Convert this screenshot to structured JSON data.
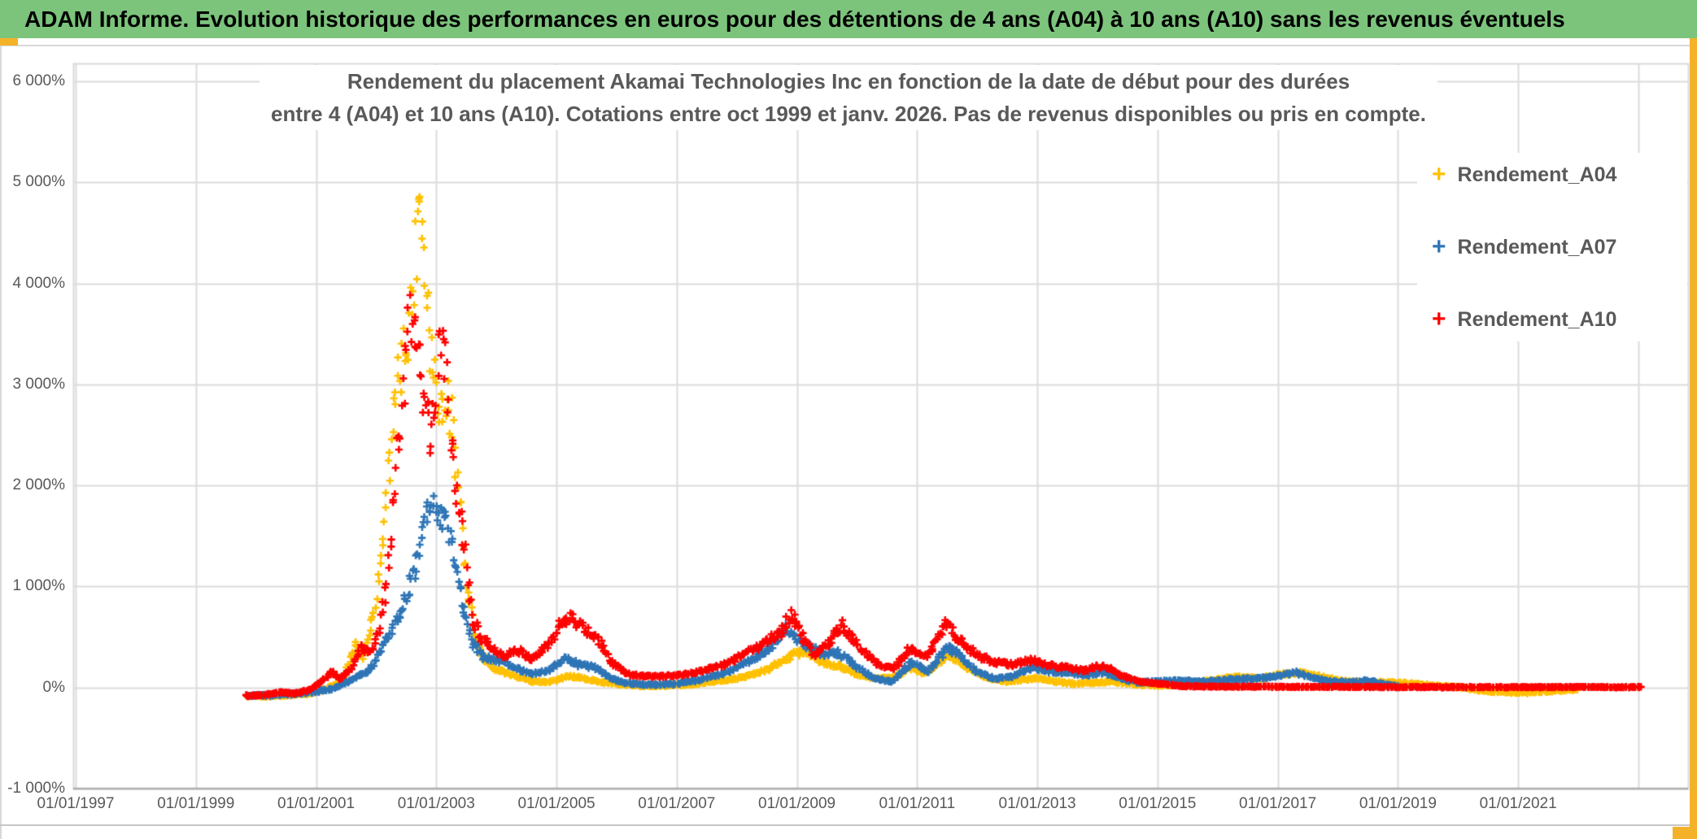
{
  "header": {
    "title": "ADAM Informe. Evolution historique des performances en euros pour des détentions de 4 ans (A04) à 10 ans (A10) sans les revenus éventuels",
    "bg_color": "#7cc47c",
    "text_color": "#000000"
  },
  "accents": {
    "gold": "#f3b229"
  },
  "chart_data": {
    "type": "scatter",
    "title_line1": "Rendement du placement Akamai Technologies Inc en fonction de la date de début pour des durées",
    "title_line2": "entre 4 (A04) et 10 ans (A10). Cotations entre oct 1999 et janv. 2026. Pas de revenus disponibles ou pris en compte.",
    "marker": "plus",
    "grid": true,
    "grid_color": "#dcdcdc",
    "border_color": "#d9d9d9",
    "axis_color": "#b0b0b0",
    "label_color": "#595959",
    "ylim": [
      -1000,
      6000
    ],
    "xlim_years": [
      1996.95,
      2023.85
    ],
    "y_tick_values": [
      6000,
      5000,
      4000,
      3000,
      2000,
      1000,
      0,
      -1000
    ],
    "y_tick_labels": [
      "6 000%",
      "5 000%",
      "4 000%",
      "3 000%",
      "2 000%",
      "1 000%",
      "0%",
      "-1 000%"
    ],
    "x_tick_years": [
      1997,
      1999,
      2001,
      2003,
      2005,
      2007,
      2009,
      2011,
      2013,
      2015,
      2017,
      2019,
      2021
    ],
    "x_grid_years": [
      1997,
      1999,
      2001,
      2003,
      2005,
      2007,
      2009,
      2011,
      2013,
      2015,
      2017,
      2019,
      2021,
      2023
    ],
    "x_tick_labels": [
      "01/01/1997",
      "01/01/1999",
      "01/01/2001",
      "01/01/2003",
      "01/01/2005",
      "01/01/2007",
      "01/01/2009",
      "01/01/2011",
      "01/01/2013",
      "01/01/2015",
      "01/01/2017",
      "01/01/2019",
      "01/01/2021"
    ],
    "points_per_year": 52,
    "legend_position": "inside-right-top",
    "series": [
      {
        "name": "Rendement_A04",
        "color": "#FFC000",
        "start_year": 1999.85,
        "end_year": 2022.0,
        "noise_frac": 0.1,
        "noise_floor_pct": 9,
        "keypoints": [
          [
            1999.85,
            -85
          ],
          [
            2000.2,
            -85
          ],
          [
            2000.6,
            -70
          ],
          [
            2000.9,
            -55
          ],
          [
            2001.1,
            -30
          ],
          [
            2001.35,
            40
          ],
          [
            2001.5,
            140
          ],
          [
            2001.65,
            420
          ],
          [
            2001.8,
            300
          ],
          [
            2001.95,
            700
          ],
          [
            2002.1,
            1400
          ],
          [
            2002.25,
            2500
          ],
          [
            2002.45,
            3300
          ],
          [
            2002.6,
            3900
          ],
          [
            2002.72,
            5100
          ],
          [
            2002.8,
            4300
          ],
          [
            2002.9,
            3500
          ],
          [
            2003.0,
            3100
          ],
          [
            2003.1,
            2700
          ],
          [
            2003.2,
            2900
          ],
          [
            2003.35,
            2200
          ],
          [
            2003.5,
            1000
          ],
          [
            2003.65,
            500
          ],
          [
            2003.8,
            260
          ],
          [
            2004.0,
            180
          ],
          [
            2004.3,
            120
          ],
          [
            2004.6,
            60
          ],
          [
            2004.9,
            60
          ],
          [
            2005.2,
            110
          ],
          [
            2005.35,
            105
          ],
          [
            2005.6,
            70
          ],
          [
            2005.9,
            45
          ],
          [
            2006.3,
            20
          ],
          [
            2006.8,
            15
          ],
          [
            2007.2,
            30
          ],
          [
            2007.6,
            60
          ],
          [
            2008.0,
            90
          ],
          [
            2008.4,
            150
          ],
          [
            2008.75,
            260
          ],
          [
            2008.95,
            330
          ],
          [
            2009.15,
            370
          ],
          [
            2009.4,
            250
          ],
          [
            2009.7,
            215
          ],
          [
            2010.0,
            130
          ],
          [
            2010.3,
            90
          ],
          [
            2010.6,
            95
          ],
          [
            2010.9,
            200
          ],
          [
            2011.1,
            140
          ],
          [
            2011.45,
            290
          ],
          [
            2011.6,
            300
          ],
          [
            2011.9,
            180
          ],
          [
            2012.2,
            90
          ],
          [
            2012.5,
            60
          ],
          [
            2012.8,
            80
          ],
          [
            2013.0,
            95
          ],
          [
            2013.3,
            60
          ],
          [
            2013.6,
            40
          ],
          [
            2013.9,
            45
          ],
          [
            2014.2,
            60
          ],
          [
            2014.5,
            40
          ],
          [
            2014.8,
            25
          ],
          [
            2015.1,
            20
          ],
          [
            2015.5,
            40
          ],
          [
            2015.9,
            70
          ],
          [
            2016.3,
            110
          ],
          [
            2016.7,
            90
          ],
          [
            2017.0,
            130
          ],
          [
            2017.4,
            150
          ],
          [
            2017.7,
            110
          ],
          [
            2018.0,
            70
          ],
          [
            2018.4,
            50
          ],
          [
            2018.8,
            55
          ],
          [
            2019.2,
            40
          ],
          [
            2019.6,
            20
          ],
          [
            2020.0,
            5
          ],
          [
            2020.4,
            -30
          ],
          [
            2020.8,
            -45
          ],
          [
            2021.2,
            -50
          ],
          [
            2021.6,
            -30
          ],
          [
            2022.0,
            -20
          ]
        ]
      },
      {
        "name": "Rendement_A07",
        "color": "#2E75B6",
        "start_year": 1999.85,
        "end_year": 2019.0,
        "noise_frac": 0.09,
        "noise_floor_pct": 9,
        "keypoints": [
          [
            1999.85,
            -80
          ],
          [
            2000.3,
            -75
          ],
          [
            2000.7,
            -60
          ],
          [
            2001.0,
            -40
          ],
          [
            2001.3,
            -10
          ],
          [
            2001.6,
            80
          ],
          [
            2001.9,
            180
          ],
          [
            2002.2,
            500
          ],
          [
            2002.5,
            900
          ],
          [
            2002.7,
            1300
          ],
          [
            2002.85,
            1750
          ],
          [
            2002.95,
            1850
          ],
          [
            2003.05,
            1600
          ],
          [
            2003.15,
            1750
          ],
          [
            2003.3,
            1300
          ],
          [
            2003.45,
            800
          ],
          [
            2003.6,
            450
          ],
          [
            2003.8,
            300
          ],
          [
            2004.0,
            280
          ],
          [
            2004.3,
            200
          ],
          [
            2004.6,
            130
          ],
          [
            2004.9,
            180
          ],
          [
            2005.15,
            290
          ],
          [
            2005.4,
            220
          ],
          [
            2005.65,
            200
          ],
          [
            2005.9,
            90
          ],
          [
            2006.2,
            40
          ],
          [
            2006.6,
            25
          ],
          [
            2007.0,
            40
          ],
          [
            2007.4,
            80
          ],
          [
            2007.8,
            140
          ],
          [
            2008.2,
            260
          ],
          [
            2008.55,
            390
          ],
          [
            2008.8,
            600
          ],
          [
            2009.0,
            480
          ],
          [
            2009.2,
            410
          ],
          [
            2009.45,
            330
          ],
          [
            2009.7,
            345
          ],
          [
            2010.0,
            200
          ],
          [
            2010.3,
            90
          ],
          [
            2010.6,
            60
          ],
          [
            2010.9,
            250
          ],
          [
            2011.2,
            160
          ],
          [
            2011.5,
            400
          ],
          [
            2011.7,
            330
          ],
          [
            2012.0,
            150
          ],
          [
            2012.3,
            90
          ],
          [
            2012.6,
            110
          ],
          [
            2012.9,
            200
          ],
          [
            2013.2,
            160
          ],
          [
            2013.5,
            150
          ],
          [
            2013.8,
            120
          ],
          [
            2014.1,
            150
          ],
          [
            2014.4,
            90
          ],
          [
            2014.7,
            50
          ],
          [
            2015.0,
            60
          ],
          [
            2015.4,
            70
          ],
          [
            2015.8,
            60
          ],
          [
            2016.2,
            80
          ],
          [
            2016.6,
            90
          ],
          [
            2017.0,
            110
          ],
          [
            2017.3,
            150
          ],
          [
            2017.6,
            90
          ],
          [
            2017.9,
            60
          ],
          [
            2018.2,
            50
          ],
          [
            2018.5,
            70
          ],
          [
            2018.8,
            30
          ],
          [
            2019.0,
            10
          ]
        ]
      },
      {
        "name": "Rendement_A10",
        "color": "#FF0000",
        "start_year": 1999.85,
        "end_year": 2023.05,
        "noise_frac": 0.09,
        "noise_floor_pct": 5,
        "keypoints": [
          [
            1999.85,
            -80
          ],
          [
            2000.15,
            -70
          ],
          [
            2000.4,
            -45
          ],
          [
            2000.65,
            -60
          ],
          [
            2000.9,
            -20
          ],
          [
            2001.1,
            60
          ],
          [
            2001.25,
            160
          ],
          [
            2001.4,
            80
          ],
          [
            2001.6,
            200
          ],
          [
            2001.75,
            420
          ],
          [
            2001.9,
            320
          ],
          [
            2002.05,
            600
          ],
          [
            2002.2,
            1100
          ],
          [
            2002.35,
            2300
          ],
          [
            2002.5,
            3300
          ],
          [
            2002.6,
            3750
          ],
          [
            2002.7,
            3400
          ],
          [
            2002.8,
            2900
          ],
          [
            2002.9,
            2500
          ],
          [
            2003.0,
            3000
          ],
          [
            2003.1,
            3650
          ],
          [
            2003.2,
            2800
          ],
          [
            2003.3,
            2100
          ],
          [
            2003.45,
            1500
          ],
          [
            2003.6,
            700
          ],
          [
            2003.75,
            500
          ],
          [
            2003.9,
            420
          ],
          [
            2004.1,
            300
          ],
          [
            2004.35,
            380
          ],
          [
            2004.6,
            270
          ],
          [
            2004.85,
            420
          ],
          [
            2005.05,
            600
          ],
          [
            2005.2,
            720
          ],
          [
            2005.35,
            620
          ],
          [
            2005.55,
            560
          ],
          [
            2005.7,
            480
          ],
          [
            2005.9,
            250
          ],
          [
            2006.2,
            130
          ],
          [
            2006.6,
            110
          ],
          [
            2007.0,
            120
          ],
          [
            2007.4,
            160
          ],
          [
            2007.8,
            230
          ],
          [
            2008.2,
            350
          ],
          [
            2008.5,
            450
          ],
          [
            2008.75,
            560
          ],
          [
            2008.9,
            720
          ],
          [
            2009.1,
            500
          ],
          [
            2009.3,
            310
          ],
          [
            2009.55,
            470
          ],
          [
            2009.75,
            620
          ],
          [
            2010.0,
            430
          ],
          [
            2010.3,
            250
          ],
          [
            2010.6,
            180
          ],
          [
            2010.9,
            400
          ],
          [
            2011.15,
            300
          ],
          [
            2011.5,
            630
          ],
          [
            2011.7,
            480
          ],
          [
            2012.0,
            320
          ],
          [
            2012.3,
            250
          ],
          [
            2012.6,
            230
          ],
          [
            2012.9,
            270
          ],
          [
            2013.2,
            220
          ],
          [
            2013.5,
            200
          ],
          [
            2013.8,
            170
          ],
          [
            2014.1,
            220
          ],
          [
            2014.4,
            120
          ],
          [
            2014.7,
            60
          ],
          [
            2015.0,
            40
          ],
          [
            2015.4,
            15
          ],
          [
            2016.0,
            10
          ],
          [
            2017.0,
            8
          ],
          [
            2018.0,
            8
          ],
          [
            2019.0,
            5
          ],
          [
            2020.0,
            5
          ],
          [
            2021.0,
            5
          ],
          [
            2022.0,
            5
          ],
          [
            2023.05,
            5
          ]
        ]
      }
    ]
  }
}
